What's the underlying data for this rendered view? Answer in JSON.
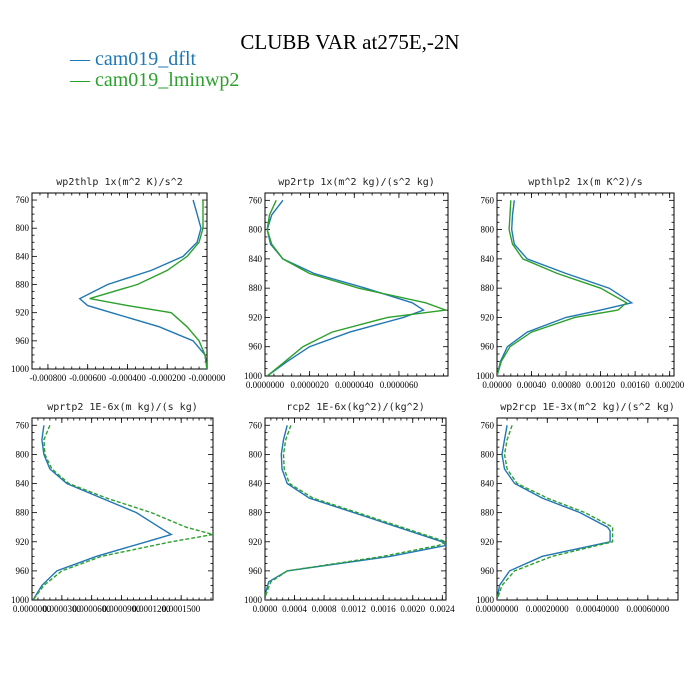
{
  "title": "CLUBB VAR at275E,-2N",
  "legend": [
    {
      "label": "cam019_dflt",
      "color": "#1f77b4"
    },
    {
      "label": "cam019_lminwp2",
      "color": "#2ca02c"
    }
  ],
  "chart_data": [
    {
      "type": "line",
      "title": "wp2thlp   1x(m^2 K)/s^2",
      "y": [
        760,
        780,
        800,
        820,
        840,
        860,
        880,
        900,
        910,
        920,
        940,
        960,
        980,
        1000
      ],
      "ylim": [
        1000,
        750
      ],
      "yticks": [
        "760",
        "800",
        "840",
        "880",
        "920",
        "960",
        "1000"
      ],
      "xlim": [
        -0.00088,
        0.0
      ],
      "xticks": [
        {
          "v": -0.0008,
          "label": "-0.000800"
        },
        {
          "v": -0.0006,
          "label": "-0.000600"
        },
        {
          "v": -0.0004,
          "label": "-0.000400"
        },
        {
          "v": -0.0002,
          "label": "-0.000200"
        },
        {
          "v": 0.0,
          "label": "-0.000000"
        }
      ],
      "series": [
        {
          "name": "cam019_dflt",
          "color": "#1f77b4",
          "dashed": false,
          "values": [
            -7e-05,
            -5e-05,
            -3e-05,
            -5e-05,
            -0.00012,
            -0.00028,
            -0.0005,
            -0.00064,
            -0.0006,
            -0.00048,
            -0.00024,
            -7e-05,
            -1e-05,
            0.0
          ]
        },
        {
          "name": "cam019_lminwp2",
          "color": "#2ca02c",
          "dashed": false,
          "values": [
            -2e-05,
            -2e-05,
            -2e-05,
            -4e-05,
            -0.0001,
            -0.0002,
            -0.00035,
            -0.00059,
            -0.0004,
            -0.00018,
            -0.0001,
            -4e-05,
            -1e-05,
            0.0
          ]
        }
      ]
    },
    {
      "type": "line",
      "title": "wp2rtp   1x(m^2 kg)/(s^2 kg)",
      "y": [
        760,
        780,
        800,
        820,
        840,
        860,
        880,
        900,
        910,
        920,
        940,
        960,
        980,
        1000
      ],
      "ylim": [
        1000,
        750
      ],
      "yticks": [
        "760",
        "800",
        "840",
        "880",
        "920",
        "960",
        "1000"
      ],
      "xlim": [
        0.0,
        8.2e-06
      ],
      "xticks": [
        {
          "v": 0.0,
          "label": "0.0000000"
        },
        {
          "v": 2e-06,
          "label": "0.0000020"
        },
        {
          "v": 4e-06,
          "label": "0.0000040"
        },
        {
          "v": 6e-06,
          "label": "0.0000060"
        }
      ],
      "series": [
        {
          "name": "cam019_dflt",
          "color": "#1f77b4",
          "dashed": false,
          "values": [
            8e-07,
            3e-07,
            1e-07,
            2.5e-07,
            8e-07,
            2.2e-06,
            4.5e-06,
            6.6e-06,
            7.1e-06,
            6.2e-06,
            3.8e-06,
            2e-06,
            1e-06,
            1e-07
          ]
        },
        {
          "name": "cam019_lminwp2",
          "color": "#2ca02c",
          "dashed": false,
          "values": [
            5e-07,
            2e-07,
            1e-07,
            3e-07,
            8e-07,
            2e-06,
            4.2e-06,
            7.2e-06,
            8.1e-06,
            5.5e-06,
            3e-06,
            1.7e-06,
            9e-07,
            1e-07
          ]
        }
      ]
    },
    {
      "type": "line",
      "title": "wpthlp2   1x(m K^2)/s",
      "y": [
        760,
        780,
        800,
        820,
        840,
        860,
        880,
        900,
        910,
        920,
        940,
        960,
        980,
        1000
      ],
      "ylim": [
        1000,
        750
      ],
      "yticks": [
        "760",
        "800",
        "840",
        "880",
        "920",
        "960",
        "1000"
      ],
      "xlim": [
        0.0,
        0.00205
      ],
      "xticks": [
        {
          "v": 0.0,
          "label": "0.00000"
        },
        {
          "v": 0.0004,
          "label": "0.00040"
        },
        {
          "v": 0.0008,
          "label": "0.00080"
        },
        {
          "v": 0.0012,
          "label": "0.00120"
        },
        {
          "v": 0.0016,
          "label": "0.00160"
        },
        {
          "v": 0.002,
          "label": "0.00200"
        }
      ],
      "series": [
        {
          "name": "cam019_dflt",
          "color": "#1f77b4",
          "dashed": false,
          "values": [
            0.0002,
            0.00018,
            0.00017,
            0.0002,
            0.00035,
            0.0008,
            0.0013,
            0.00156,
            0.0012,
            0.0008,
            0.00035,
            0.00012,
            4e-05,
            0.0
          ]
        },
        {
          "name": "cam019_lminwp2",
          "color": "#2ca02c",
          "dashed": false,
          "values": [
            0.00016,
            0.00015,
            0.00014,
            0.00018,
            0.0003,
            0.0007,
            0.0012,
            0.0015,
            0.0014,
            0.0009,
            0.0004,
            0.00015,
            5e-05,
            0.0
          ]
        }
      ]
    },
    {
      "type": "line",
      "title": "wprtp2   1E-6x(m kg)/(s kg)",
      "y": [
        760,
        780,
        800,
        820,
        840,
        860,
        880,
        900,
        910,
        920,
        940,
        960,
        980,
        1000
      ],
      "ylim": [
        1000,
        750
      ],
      "yticks": [
        "760",
        "800",
        "840",
        "880",
        "920",
        "960",
        "1000"
      ],
      "xlim": [
        0.0,
        0.000182
      ],
      "xticks": [
        {
          "v": 0.0,
          "label": "0.0000000"
        },
        {
          "v": 3e-05,
          "label": "0.0000300"
        },
        {
          "v": 6e-05,
          "label": "0.0000600"
        },
        {
          "v": 9e-05,
          "label": "0.0000900"
        },
        {
          "v": 0.00012,
          "label": "0.0001200"
        },
        {
          "v": 0.00015,
          "label": "0.0001500"
        }
      ],
      "series": [
        {
          "name": "cam019_dflt",
          "color": "#1f77b4",
          "dashed": false,
          "values": [
            1.2e-05,
            1e-05,
            1.2e-05,
            1.8e-05,
            3.5e-05,
            7e-05,
            0.000105,
            0.000128,
            0.00014,
            0.000115,
            6.5e-05,
            2.5e-05,
            1e-05,
            1e-06
          ]
        },
        {
          "name": "cam019_lminwp2",
          "color": "#2ca02c",
          "dashed": true,
          "values": [
            1.8e-05,
            1.2e-05,
            1.3e-05,
            2e-05,
            3.7e-05,
            7.5e-05,
            0.00012,
            0.000155,
            0.000182,
            0.00014,
            7e-05,
            3e-05,
            1.2e-05,
            1e-06
          ]
        }
      ]
    },
    {
      "type": "line",
      "title": "rcp2   1E-6x(kg^2)/(kg^2)",
      "y": [
        760,
        780,
        800,
        820,
        840,
        860,
        880,
        900,
        920,
        925,
        940,
        960,
        975,
        990,
        1000
      ],
      "ylim": [
        1000,
        750
      ],
      "yticks": [
        "760",
        "800",
        "840",
        "880",
        "920",
        "960",
        "1000"
      ],
      "xlim": [
        0.0,
        0.00245
      ],
      "xticks": [
        {
          "v": 0.0,
          "label": "0.0000"
        },
        {
          "v": 0.0004,
          "label": "0.0004"
        },
        {
          "v": 0.0008,
          "label": "0.0008"
        },
        {
          "v": 0.0012,
          "label": "0.0012"
        },
        {
          "v": 0.0016,
          "label": "0.0016"
        },
        {
          "v": 0.002,
          "label": "0.0020"
        },
        {
          "v": 0.0024,
          "label": "0.0024"
        }
      ],
      "series": [
        {
          "name": "cam019_dflt",
          "color": "#1f77b4",
          "dashed": false,
          "values": [
            0.0003,
            0.00025,
            0.00022,
            0.00023,
            0.0003,
            0.0006,
            0.0012,
            0.0018,
            0.0024,
            0.00245,
            0.0017,
            0.0003,
            5e-05,
            1e-05,
            0.0
          ]
        },
        {
          "name": "cam019_lminwp2",
          "color": "#2ca02c",
          "dashed": true,
          "values": [
            0.00035,
            0.00028,
            0.00025,
            0.00026,
            0.00033,
            0.00065,
            0.00125,
            0.00185,
            0.00245,
            0.00235,
            0.0016,
            0.0003,
            8e-05,
            2e-05,
            0.0
          ]
        }
      ]
    },
    {
      "type": "line",
      "title": "wp2rcp   1E-3x(m^2 kg)/(s^2 kg)",
      "y": [
        760,
        780,
        800,
        820,
        840,
        860,
        880,
        900,
        905,
        920,
        940,
        960,
        980,
        1000
      ],
      "ylim": [
        1000,
        750
      ],
      "yticks": [
        "760",
        "800",
        "840",
        "880",
        "920",
        "960",
        "1000"
      ],
      "xlim": [
        0.0,
        0.00072
      ],
      "xticks": [
        {
          "v": 0.0,
          "label": "0.00000000"
        },
        {
          "v": 0.0002,
          "label": "0.00020000"
        },
        {
          "v": 0.0004,
          "label": "0.00040000"
        },
        {
          "v": 0.0006,
          "label": "0.00060000"
        }
      ],
      "series": [
        {
          "name": "cam019_dflt",
          "color": "#1f77b4",
          "dashed": false,
          "values": [
            4e-05,
            3e-05,
            2e-05,
            3e-05,
            7e-05,
            0.00018,
            0.00033,
            0.00044,
            0.00045,
            0.00045,
            0.00018,
            5e-05,
            1e-05,
            0.0
          ]
        },
        {
          "name": "cam019_lminwp2",
          "color": "#2ca02c",
          "dashed": true,
          "values": [
            6e-05,
            4e-05,
            3e-05,
            4e-05,
            8e-05,
            0.0002,
            0.00035,
            0.00046,
            0.00046,
            0.00046,
            0.00022,
            7e-05,
            2e-05,
            0.0
          ]
        }
      ]
    }
  ]
}
